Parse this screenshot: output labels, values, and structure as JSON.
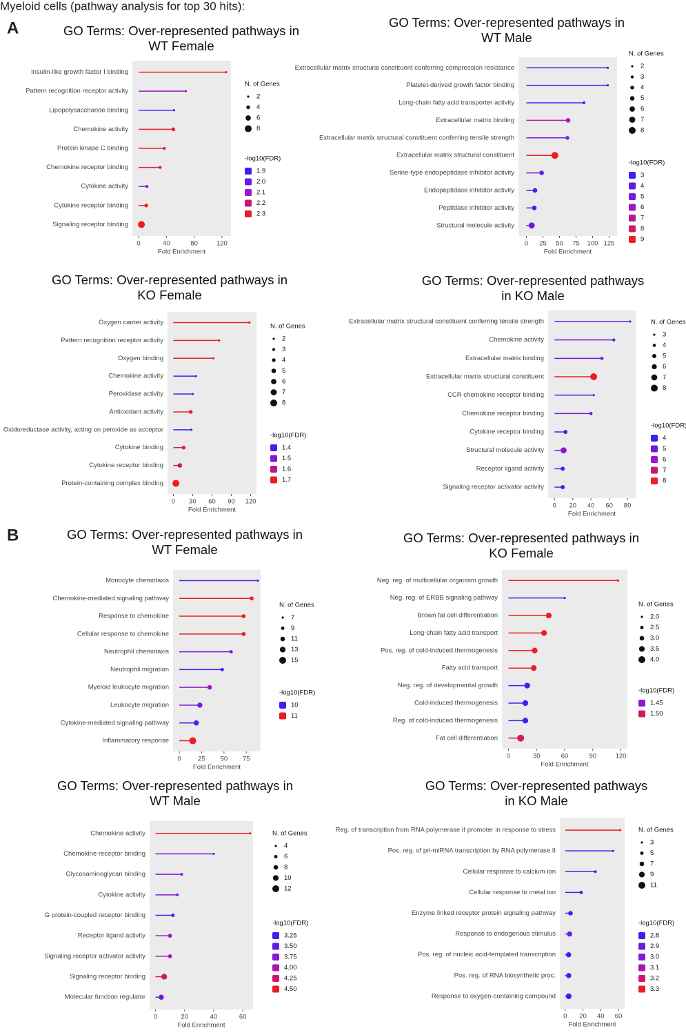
{
  "title": "Myeloid cells (pathway analysis for top 30 hits):",
  "panels": [
    "A",
    "B"
  ],
  "chart_data": [
    {
      "type": "lollipop",
      "title": [
        "GO Terms: Over-represented pathways in",
        "WT Female"
      ],
      "x_label": "Fold Enrichment",
      "categories": [
        "Insulin-like growth factor I binding",
        "Pattern recognition receptor activity",
        "Lipopolysaccharide binding",
        "Chemokine activity",
        "Protein kinase C binding",
        "Chemokine receptor binding",
        "Cytokine activity",
        "Cytokine receptor binding",
        "Signaling receptor binding"
      ],
      "values": [
        126,
        68,
        51,
        50,
        37,
        31,
        12,
        11,
        4
      ],
      "sizes": [
        2,
        2,
        2,
        4,
        3,
        3,
        3,
        4,
        8
      ],
      "fdr": [
        2.3,
        2.1,
        1.9,
        2.3,
        2.3,
        2.25,
        2.1,
        2.3,
        2.3
      ],
      "xlim": [
        -9,
        133
      ],
      "xticks": [
        0,
        40,
        80,
        120
      ],
      "size_legend": {
        "title": "N. of Genes",
        "values": [
          2,
          4,
          6,
          8
        ]
      },
      "color_legend": {
        "title": "-log10(FDR)",
        "values": [
          1.9,
          {
            "value": 2,
            "label": "2.0"
          },
          2.1,
          2.2,
          2.3
        ]
      },
      "colors": [
        "#3a22f0",
        "#9c16cc",
        "#ee1c25"
      ],
      "panel_color": "#ebebeb"
    },
    {
      "type": "lollipop",
      "title": [
        "GO Terms: Over-represented pathways in",
        "WT Male"
      ],
      "x_label": "Fold Enrichment",
      "categories": [
        "Extracellular matrix structural constituent conferring compression resistance",
        "Platelet-derived growth factor binding",
        "Long-chain fatty acid transporter activity",
        "Extracellular matrix binding",
        "Extracellular matrix structural constituent conferring tensile strength",
        "Extracellular matrix structural constituent",
        "Serine-type endopeptidase inhibitor activity",
        "Endopeptidase inhibitor activity",
        "Peptidase inhibitor activity",
        "Structural molecule activity"
      ],
      "values": [
        123,
        123,
        87,
        63,
        62,
        43,
        23,
        13,
        12,
        8
      ],
      "sizes": [
        2,
        2,
        3,
        5,
        4,
        8,
        5,
        5,
        5,
        7
      ],
      "fdr": [
        3,
        3,
        3.3,
        6.5,
        4.5,
        9,
        4.5,
        3,
        3,
        4.5
      ],
      "xlim": [
        -12,
        137
      ],
      "xticks": [
        0,
        25,
        50,
        75,
        100,
        125
      ],
      "size_legend": {
        "title": "N. of Genes",
        "values": [
          2,
          3,
          4,
          5,
          6,
          7,
          8
        ]
      },
      "color_legend": {
        "title": "-log10(FDR)",
        "values": [
          3,
          4,
          5,
          6,
          7,
          8,
          9
        ]
      },
      "colors": [
        "#3a22f0",
        "#9c16cc",
        "#ee1c25"
      ],
      "panel_color": "#ebebeb"
    },
    {
      "type": "lollipop",
      "title": [
        "GO Terms: Over-represented pathways in",
        "KO Female"
      ],
      "x_label": "Fold Enrichment",
      "categories": [
        "Oxygen carrier activity",
        "Pattern recognition receptor activity",
        "Oxygen binding",
        "Chemokine activity",
        "Peroxidase activity",
        "Antioxidant activity",
        "Oxidoreductase activity, acting on peroxide as acceptor",
        "Cytokine binding",
        "Cytokine receptor binding",
        "Protein-containing complex binding"
      ],
      "values": [
        118,
        71,
        62,
        35,
        30,
        27,
        28,
        16,
        10,
        4
      ],
      "sizes": [
        2,
        2,
        2,
        2,
        2,
        4,
        2,
        4,
        5,
        8
      ],
      "fdr": [
        1.7,
        1.7,
        1.7,
        1.4,
        1.4,
        1.7,
        1.4,
        1.65,
        1.65,
        1.7
      ],
      "xlim": [
        -9,
        129
      ],
      "xticks": [
        0,
        30,
        60,
        90,
        120
      ],
      "size_legend": {
        "title": "N. of Genes",
        "values": [
          2,
          3,
          4,
          5,
          6,
          7,
          8
        ]
      },
      "color_legend": {
        "title": "-log10(FDR)",
        "values": [
          1.4,
          1.5,
          1.6,
          1.7
        ]
      },
      "colors": [
        "#3a22f0",
        "#9c16cc",
        "#ee1c25"
      ],
      "panel_color": "#ebebeb"
    },
    {
      "type": "lollipop",
      "title": [
        "GO Terms: Over-represented pathways",
        "in KO Male"
      ],
      "x_label": "Fold Enrichment",
      "categories": [
        "Extracellular matrix structural constituent conferring tensile strength",
        "Chemokine activity",
        "Extracellular matrix binding",
        "Extracellular matrix structural constituent",
        "CCR chemokine receptor binding",
        "Chemokine receptor binding",
        "Cytokine receptor binding",
        "Structural molecule activity",
        "Receptor ligand activity",
        "Signaling receptor activator activity"
      ],
      "values": [
        83,
        65,
        52,
        43,
        43,
        40,
        12,
        10,
        9,
        9
      ],
      "sizes": [
        3,
        4,
        4,
        8,
        3,
        4,
        5,
        7,
        5,
        5
      ],
      "fdr": [
        5,
        5,
        5,
        8,
        4,
        5,
        4,
        5.5,
        4,
        4
      ],
      "xlim": [
        -7,
        89
      ],
      "xticks": [
        0,
        20,
        40,
        60,
        80
      ],
      "size_legend": {
        "title": "N. of Genes",
        "values": [
          3,
          4,
          5,
          6,
          7,
          8
        ]
      },
      "color_legend": {
        "title": "-log10(FDR)",
        "values": [
          4,
          5,
          6,
          7,
          8
        ]
      },
      "colors": [
        "#3a22f0",
        "#9c16cc",
        "#ee1c25"
      ],
      "panel_color": "#ebebeb"
    },
    {
      "type": "lollipop",
      "title": [
        "GO Terms: Over-represented pathways in",
        "WT Female"
      ],
      "x_label": "Fold Enrichment",
      "categories": [
        "Monocyte chemotaxis",
        "Chemokine-mediated signaling pathway",
        "Response to chemokine",
        "Cellular response to chemokine",
        "Neutrophil chemotaxis",
        "Neutrophil migration",
        "Myeloid leukocyte migration",
        "Leukocyte migration",
        "Cytokine-mediated signaling pathway",
        "Inflammatory response"
      ],
      "values": [
        88,
        81,
        72,
        72,
        58,
        48,
        34,
        23,
        19,
        15
      ],
      "sizes": [
        7,
        10,
        10,
        10,
        9,
        9,
        11,
        12,
        12,
        15
      ],
      "fdr": [
        10.2,
        11,
        11,
        11,
        10.3,
        10,
        10.5,
        10.3,
        10,
        11
      ],
      "xlim": [
        -7,
        91
      ],
      "xticks": [
        0,
        25,
        50,
        75
      ],
      "size_legend": {
        "title": "N. of Genes",
        "values": [
          7,
          9,
          11,
          13,
          15
        ]
      },
      "color_legend": {
        "title": "-log10(FDR)",
        "values": [
          10,
          11
        ]
      },
      "colors": [
        "#3a22f0",
        "#9c16cc",
        "#ee1c25"
      ],
      "panel_color": "#ebebeb"
    },
    {
      "type": "lollipop",
      "title": [
        "GO Terms: Over-represented pathways in",
        "KO Female"
      ],
      "x_label": "Fold Enrichment",
      "categories": [
        "Neg. reg. of multicellular organism growth",
        "Neg. reg. of ERBB signaling pathway",
        "Brown fat cell differentiation",
        "Long-chain fatty acid transport",
        "Pos. reg. of cold-induced thermogenesis",
        "Fatty acid transport",
        "Neg. reg. of developmental growth",
        "Cold-induced thermogenesis",
        "Reg. of cold-induced thermogenesis",
        "Fat cell differentiation"
      ],
      "values": [
        117,
        60,
        43,
        38,
        28,
        27,
        20,
        18,
        18,
        13
      ],
      "sizes": [
        2,
        2,
        3.5,
        3.5,
        3.5,
        3.5,
        3.5,
        3.5,
        3.5,
        4
      ],
      "fdr": [
        1.52,
        1.4,
        1.52,
        1.52,
        1.52,
        1.52,
        1.4,
        1.4,
        1.4,
        1.5
      ],
      "xlim": [
        -7,
        127
      ],
      "xticks": [
        0,
        30,
        60,
        90,
        120
      ],
      "size_legend": {
        "title": "N. of Genes",
        "values": [
          {
            "value": 2,
            "label": "2.0"
          },
          2.5,
          {
            "value": 3,
            "label": "3.0"
          },
          3.5,
          {
            "value": 4,
            "label": "4.0"
          }
        ]
      },
      "color_legend": {
        "title": "-log10(FDR)",
        "values": [
          1.45,
          {
            "value": 1.5,
            "label": "1.50"
          }
        ]
      },
      "colors": [
        "#3a22f0",
        "#9c16cc",
        "#ee1c25"
      ],
      "panel_color": "#ebebeb"
    },
    {
      "type": "lollipop",
      "title": [
        "GO Terms: Over-represented pathways in",
        "WT Male"
      ],
      "x_label": "Fold Enrichment",
      "categories": [
        "Chemokine activity",
        "Chemokine receptor binding",
        "Glycosaminoglycan binding",
        "Cytokine activity",
        "G protein-coupled receptor binding",
        "Receptor ligand activity",
        "Signaling receptor activator activity",
        "Signaling receptor binding",
        "Molecular function regulator"
      ],
      "values": [
        65,
        40,
        18,
        15,
        12,
        10,
        10,
        6,
        4
      ],
      "sizes": [
        4,
        4,
        5,
        5,
        6,
        7,
        7,
        10,
        9
      ],
      "fdr": [
        4.5,
        3.75,
        3.75,
        3.75,
        3.25,
        3.9,
        3.9,
        4.3,
        3.6
      ],
      "xlim": [
        -4,
        67
      ],
      "xticks": [
        0,
        20,
        40,
        60
      ],
      "size_legend": {
        "title": "N. of Genes",
        "values": [
          4,
          6,
          8,
          10,
          12
        ]
      },
      "color_legend": {
        "title": "-log10(FDR)",
        "values": [
          3.25,
          {
            "value": 3.5,
            "label": "3.50"
          },
          3.75,
          {
            "value": 4,
            "label": "4.00"
          },
          4.25,
          {
            "value": 4.5,
            "label": "4.50"
          }
        ]
      },
      "colors": [
        "#3a22f0",
        "#9c16cc",
        "#ee1c25"
      ],
      "panel_color": "#ebebeb"
    },
    {
      "type": "lollipop",
      "title": [
        "GO Terms: Over-represented pathways",
        "in KO Male"
      ],
      "x_label": "Fold Enrichment",
      "categories": [
        "Reg. of transcription from RNA polymerase II promoter in response to stress",
        "Pos. reg. of pri-miRNA transcription by RNA polymerase II",
        "Cellular response to calcium ion",
        "Cellular response to metal ion",
        "Enzyme linked receptor protein signaling pathway",
        "Response to endogenous stimulus",
        "Pos. reg. of nucleic acid-templated transcription",
        "Pos. reg. of RNA biosynthetic proc.",
        "Response to oxygen-containing compound"
      ],
      "values": [
        62,
        54,
        34,
        18,
        6,
        5,
        4,
        4,
        4
      ],
      "sizes": [
        3,
        3,
        4,
        5,
        7,
        8,
        8,
        8,
        9
      ],
      "fdr": [
        3.3,
        2.8,
        2.9,
        2.85,
        2.8,
        2.9,
        2.8,
        2.8,
        2.8
      ],
      "xlim": [
        -6,
        67
      ],
      "xticks": [
        0,
        20,
        40,
        60
      ],
      "size_legend": {
        "title": "N. of Genes",
        "values": [
          3,
          5,
          7,
          9,
          11
        ]
      },
      "color_legend": {
        "title": "-log10(FDR)",
        "values": [
          2.8,
          2.9,
          {
            "value": 3,
            "label": "3.0"
          },
          3.1,
          3.2,
          3.3
        ]
      },
      "colors": [
        "#3a22f0",
        "#9c16cc",
        "#ee1c25"
      ],
      "panel_color": "#ebebeb"
    }
  ]
}
